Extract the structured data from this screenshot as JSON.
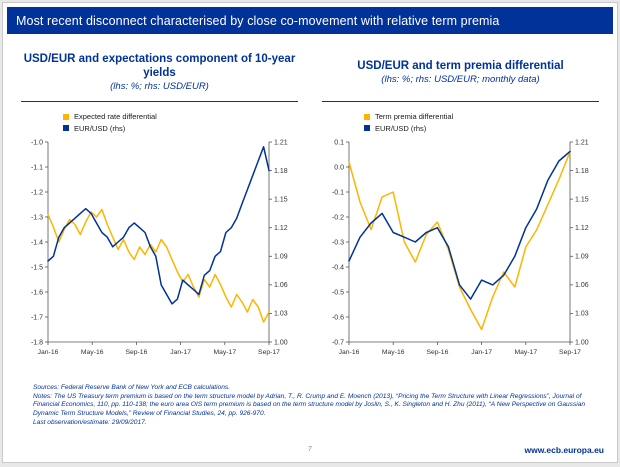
{
  "slide": {
    "title": "Most recent disconnect characterised by close co-movement with relative term premia"
  },
  "footer": {
    "notes": [
      "Sources: Federal Reserve Bank of New York and ECB calculations.",
      "Notes: The US Treasury term premium is based on the term structure model by Adrian, T., R. Crump and E. Moench (2013), “Pricing the Term Structure with Linear Regressions”, Journal of Financial Economics, 110, pp. 110-138; the euro area OIS term premium is based on the term structure model by Joslin, S., K. Singleton and H. Zhu (2011), “A New Perspective on Gaussian Dynamic Term Structure Models,” Review of Financial Studies, 24, pp. 926-970.",
      "Last observation/estimate: 29/09/2017."
    ],
    "page_number": "7",
    "url": "www.ecb.europa.eu"
  },
  "colors": {
    "ecb_blue": "#003299",
    "series_yellow": "#FFB400",
    "axis": "#555555"
  },
  "chart_data": [
    {
      "type": "line",
      "title": "USD/EUR and expectations component of 10-year yields",
      "subtitle": "(lhs: %; rhs: USD/EUR)",
      "x_ticks": [
        "Jan-16",
        "May-16",
        "Sep-16",
        "Jan-17",
        "May-17",
        "Sep-17"
      ],
      "left_axis": {
        "min": -1.8,
        "max": -1.0,
        "ticks": [
          "-1.0",
          "-1.1",
          "-1.2",
          "-1.3",
          "-1.4",
          "-1.5",
          "-1.6",
          "-1.7",
          "-1.8"
        ]
      },
      "right_axis": {
        "min": 1.0,
        "max": 1.21,
        "ticks": [
          "1.21",
          "1.18",
          "1.15",
          "1.12",
          "1.09",
          "1.06",
          "1.03",
          "1.00"
        ]
      },
      "legend_position": "top-left",
      "grid": false,
      "series": [
        {
          "name": "Expected rate differential",
          "axis": "left",
          "color": "#FFB400",
          "values": [
            -1.29,
            -1.34,
            -1.4,
            -1.35,
            -1.31,
            -1.33,
            -1.37,
            -1.32,
            -1.28,
            -1.3,
            -1.27,
            -1.33,
            -1.38,
            -1.43,
            -1.39,
            -1.44,
            -1.47,
            -1.42,
            -1.45,
            -1.41,
            -1.44,
            -1.39,
            -1.42,
            -1.47,
            -1.52,
            -1.56,
            -1.53,
            -1.58,
            -1.62,
            -1.55,
            -1.58,
            -1.53,
            -1.57,
            -1.62,
            -1.66,
            -1.61,
            -1.64,
            -1.68,
            -1.63,
            -1.66,
            -1.72,
            -1.68
          ]
        },
        {
          "name": "EUR/USD (rhs)",
          "axis": "right",
          "color": "#003299",
          "values": [
            1.085,
            1.09,
            1.11,
            1.12,
            1.125,
            1.13,
            1.135,
            1.14,
            1.135,
            1.125,
            1.115,
            1.11,
            1.1,
            1.105,
            1.11,
            1.12,
            1.125,
            1.12,
            1.115,
            1.1,
            1.09,
            1.06,
            1.05,
            1.04,
            1.045,
            1.065,
            1.06,
            1.055,
            1.05,
            1.07,
            1.075,
            1.09,
            1.095,
            1.115,
            1.12,
            1.13,
            1.145,
            1.16,
            1.175,
            1.19,
            1.205,
            1.18
          ]
        }
      ]
    },
    {
      "type": "line",
      "title": "USD/EUR and term premia differential",
      "subtitle": "(lhs: %; rhs: USD/EUR; monthly data)",
      "x_ticks": [
        "Jan-16",
        "May-16",
        "Sep-16",
        "Jan-17",
        "May-17",
        "Sep-17"
      ],
      "left_axis": {
        "min": -0.7,
        "max": 0.1,
        "ticks": [
          "0.1",
          "0.0",
          "-0.1",
          "-0.2",
          "-0.3",
          "-0.4",
          "-0.5",
          "-0.6",
          "-0.7"
        ]
      },
      "right_axis": {
        "min": 1.0,
        "max": 1.21,
        "ticks": [
          "1.21",
          "1.18",
          "1.15",
          "1.12",
          "1.09",
          "1.06",
          "1.03",
          "1.00"
        ]
      },
      "legend_position": "top-left",
      "grid": false,
      "series": [
        {
          "name": "Term premia differential",
          "axis": "left",
          "color": "#FFB400",
          "values": [
            0.02,
            -0.14,
            -0.25,
            -0.12,
            -0.1,
            -0.3,
            -0.38,
            -0.27,
            -0.22,
            -0.33,
            -0.48,
            -0.57,
            -0.65,
            -0.52,
            -0.42,
            -0.48,
            -0.32,
            -0.25,
            -0.15,
            -0.05,
            0.06
          ]
        },
        {
          "name": "EUR/USD (rhs)",
          "axis": "right",
          "color": "#003299",
          "values": [
            1.085,
            1.11,
            1.125,
            1.135,
            1.115,
            1.11,
            1.105,
            1.115,
            1.12,
            1.1,
            1.06,
            1.045,
            1.065,
            1.06,
            1.07,
            1.09,
            1.12,
            1.14,
            1.17,
            1.19,
            1.2
          ]
        }
      ]
    }
  ]
}
